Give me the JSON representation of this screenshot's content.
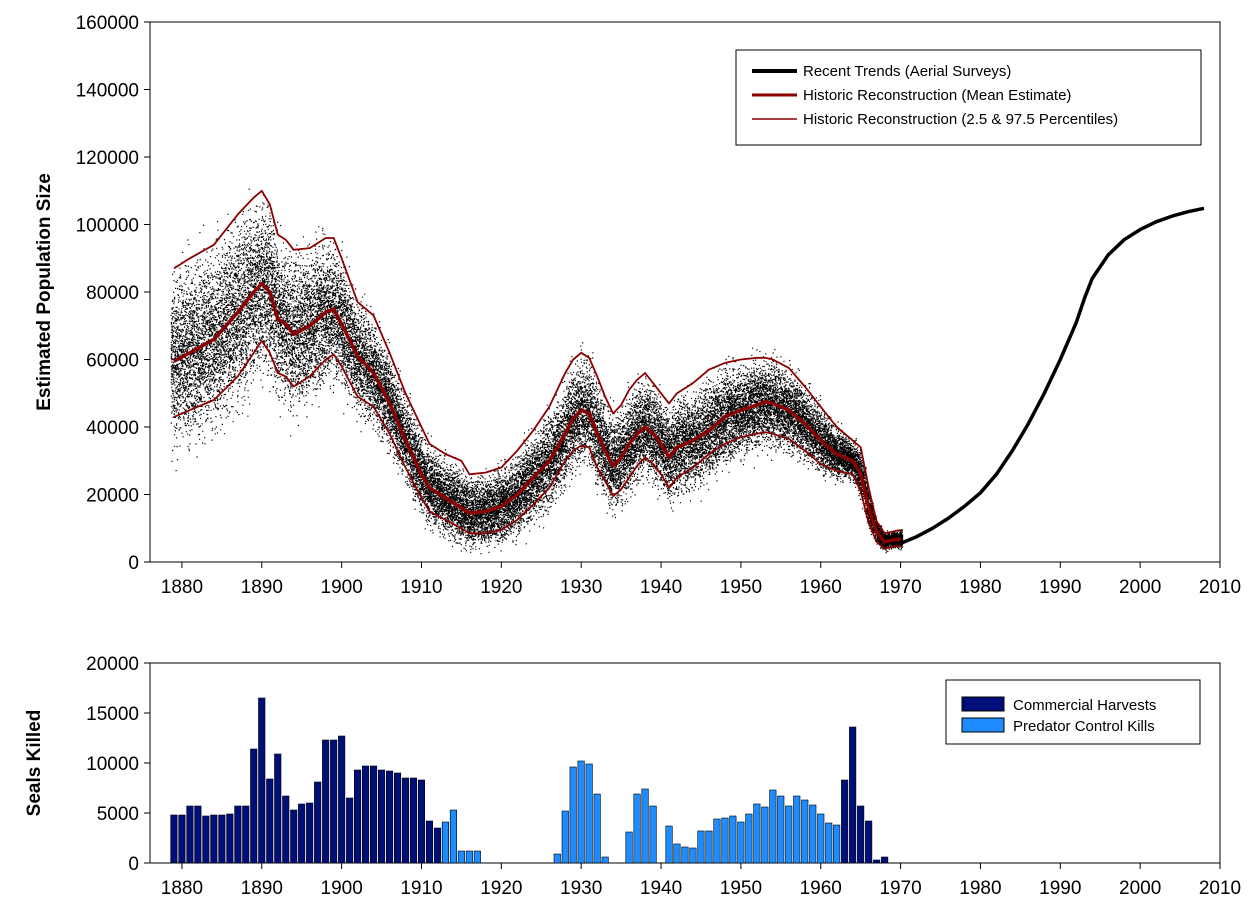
{
  "colors": {
    "recent": "#000000",
    "historic": "#8b0000",
    "commercial": "#000e7a",
    "predator": "#1e8cff",
    "scatter": "#000000"
  },
  "chart_data": [
    {
      "type": "line",
      "title": "",
      "xlabel": "",
      "ylabel": "Estimated Population Size",
      "xlim": [
        1876,
        2010
      ],
      "ylim": [
        0,
        160000
      ],
      "xticks": [
        1880,
        1890,
        1900,
        1910,
        1920,
        1930,
        1940,
        1950,
        1960,
        1970,
        1980,
        1990,
        2000,
        2010
      ],
      "yticks": [
        0,
        20000,
        40000,
        60000,
        80000,
        100000,
        120000,
        140000,
        160000
      ],
      "grid": false,
      "legend_position": "top-right",
      "series": [
        {
          "name": "Recent Trends (Aerial Surveys)",
          "style": "thick-black",
          "x": [
            1970,
            1972,
            1974,
            1976,
            1978,
            1980,
            1982,
            1984,
            1986,
            1988,
            1990,
            1992,
            1993,
            1994,
            1996,
            1998,
            2000,
            2002,
            2004,
            2006,
            2008
          ],
          "y": [
            5500,
            7500,
            10000,
            13000,
            16500,
            20500,
            26000,
            33000,
            41000,
            50000,
            60000,
            71000,
            78000,
            84000,
            91000,
            95500,
            98500,
            100800,
            102500,
            103800,
            104800
          ]
        },
        {
          "name": "Historic Reconstruction (Mean Estimate)",
          "style": "thick-darkred",
          "x": [
            1879,
            1881,
            1884,
            1887,
            1889,
            1890,
            1891,
            1892,
            1893,
            1894,
            1896,
            1898,
            1899,
            1900,
            1902,
            1904,
            1906,
            1908,
            1910,
            1911,
            1913,
            1915,
            1916,
            1918,
            1920,
            1922,
            1924,
            1926,
            1928,
            1929,
            1930,
            1931,
            1932,
            1933,
            1934,
            1935,
            1936,
            1937,
            1938,
            1939,
            1940,
            1941,
            1942,
            1944,
            1946,
            1948,
            1950,
            1952,
            1953,
            1954,
            1956,
            1958,
            1960,
            1962,
            1964,
            1965,
            1966,
            1967,
            1968,
            1969,
            1970
          ],
          "y": [
            59500,
            62000,
            66000,
            74000,
            80000,
            82500,
            80000,
            72000,
            70500,
            67500,
            70000,
            74000,
            75000,
            70500,
            61000,
            56000,
            47000,
            36000,
            26000,
            22000,
            19000,
            16000,
            14500,
            15000,
            16500,
            20000,
            25000,
            30000,
            38000,
            42500,
            45000,
            44000,
            38000,
            33000,
            28500,
            31000,
            35000,
            38000,
            40000,
            38000,
            35000,
            31000,
            34000,
            36000,
            39000,
            43000,
            45000,
            46500,
            47500,
            47000,
            45000,
            41000,
            36000,
            32000,
            30000,
            26000,
            16000,
            9000,
            6000,
            6500,
            6800
          ]
        },
        {
          "name": "Historic Reconstruction (2.5 & 97.5 Percentiles)",
          "style": "thin-darkred",
          "x": [
            1879,
            1881,
            1884,
            1887,
            1889,
            1890,
            1891,
            1892,
            1893,
            1894,
            1896,
            1898,
            1899,
            1900,
            1902,
            1904,
            1906,
            1908,
            1910,
            1911,
            1913,
            1915,
            1916,
            1918,
            1920,
            1922,
            1924,
            1926,
            1928,
            1929,
            1930,
            1931,
            1932,
            1933,
            1934,
            1935,
            1936,
            1937,
            1938,
            1939,
            1940,
            1941,
            1942,
            1944,
            1946,
            1948,
            1950,
            1952,
            1953,
            1954,
            1956,
            1958,
            1960,
            1962,
            1964,
            1965,
            1966,
            1967,
            1968,
            1969,
            1970
          ],
          "y": [
            87000,
            90000,
            94000,
            103000,
            108000,
            110000,
            106000,
            97000,
            95500,
            92500,
            93000,
            96000,
            96000,
            90000,
            77000,
            73000,
            62000,
            50000,
            40000,
            35000,
            32000,
            30000,
            26000,
            26500,
            28000,
            33000,
            39000,
            46000,
            56000,
            60000,
            62000,
            60500,
            55000,
            49000,
            44000,
            46500,
            51000,
            54000,
            56000,
            53000,
            50000,
            47000,
            50000,
            53000,
            57000,
            59000,
            60000,
            60500,
            60500,
            60000,
            57500,
            52000,
            46000,
            40000,
            36000,
            34000,
            22000,
            12000,
            8500,
            9000,
            9500
          ]
        },
        {
          "name": "",
          "style": "thin-darkred",
          "x": [
            1879,
            1881,
            1884,
            1887,
            1889,
            1890,
            1891,
            1892,
            1893,
            1894,
            1896,
            1898,
            1899,
            1900,
            1902,
            1904,
            1906,
            1908,
            1910,
            1911,
            1913,
            1915,
            1916,
            1918,
            1920,
            1922,
            1924,
            1926,
            1928,
            1929,
            1930,
            1931,
            1932,
            1933,
            1934,
            1935,
            1936,
            1937,
            1938,
            1939,
            1940,
            1941,
            1942,
            1944,
            1946,
            1948,
            1950,
            1952,
            1953,
            1954,
            1956,
            1958,
            1960,
            1962,
            1964,
            1965,
            1966,
            1967,
            1968,
            1969,
            1970
          ],
          "y": [
            43000,
            45000,
            48000,
            55000,
            62000,
            65500,
            62000,
            56000,
            55000,
            52000,
            55000,
            60000,
            61500,
            58000,
            49000,
            46000,
            38000,
            28000,
            19000,
            15000,
            12500,
            10000,
            8500,
            8500,
            9500,
            12500,
            17000,
            22000,
            30000,
            33000,
            34500,
            34000,
            28000,
            24000,
            19500,
            21500,
            25000,
            28500,
            31000,
            29000,
            26000,
            22000,
            25000,
            28000,
            32000,
            35000,
            37000,
            38000,
            38500,
            38000,
            36500,
            33000,
            29000,
            27000,
            26000,
            21000,
            11500,
            6000,
            4000,
            4500,
            4800
          ]
        }
      ]
    },
    {
      "type": "bar",
      "title": "",
      "xlabel": "",
      "ylabel": "Seals Killed",
      "xlim": [
        1876,
        2010
      ],
      "ylim": [
        0,
        20000
      ],
      "xticks": [
        1880,
        1890,
        1900,
        1910,
        1920,
        1930,
        1940,
        1950,
        1960,
        1970,
        1980,
        1990,
        2000,
        2010
      ],
      "yticks": [
        0,
        5000,
        10000,
        15000,
        20000
      ],
      "grid": false,
      "legend_position": "top-right",
      "series": [
        {
          "name": "Commercial Harvests",
          "x": [
            1879,
            1880,
            1881,
            1882,
            1883,
            1884,
            1885,
            1886,
            1887,
            1888,
            1889,
            1890,
            1891,
            1892,
            1893,
            1894,
            1895,
            1896,
            1897,
            1898,
            1899,
            1900,
            1901,
            1902,
            1903,
            1904,
            1905,
            1906,
            1907,
            1908,
            1909,
            1910,
            1911,
            1912,
            1913,
            1963,
            1964,
            1965,
            1966,
            1967,
            1968
          ],
          "values": [
            4800,
            4800,
            5700,
            5700,
            4700,
            4800,
            4800,
            4900,
            5700,
            5700,
            11400,
            16500,
            8400,
            10900,
            6700,
            5300,
            5900,
            6000,
            8100,
            12300,
            12300,
            12700,
            6500,
            9300,
            9700,
            9700,
            9300,
            9200,
            9000,
            8500,
            8500,
            8300,
            4200,
            3500,
            3800,
            8300,
            13600,
            5700,
            4200,
            300,
            600
          ]
        },
        {
          "name": "Predator Control Kills",
          "x": [
            1913,
            1914,
            1915,
            1916,
            1917,
            1927,
            1928,
            1929,
            1930,
            1931,
            1932,
            1933,
            1936,
            1937,
            1938,
            1939,
            1941,
            1942,
            1943,
            1944,
            1945,
            1946,
            1947,
            1948,
            1949,
            1950,
            1951,
            1952,
            1953,
            1954,
            1955,
            1956,
            1957,
            1958,
            1959,
            1960,
            1961,
            1962
          ],
          "values": [
            4100,
            5300,
            1200,
            1200,
            1200,
            900,
            5200,
            9600,
            10200,
            9900,
            6900,
            600,
            3100,
            6900,
            7400,
            5700,
            3700,
            1900,
            1600,
            1500,
            3200,
            3200,
            4400,
            4500,
            4700,
            4100,
            4900,
            5900,
            5600,
            7300,
            6700,
            5700,
            6700,
            6300,
            5800,
            4900,
            4000,
            3800
          ]
        }
      ]
    }
  ]
}
